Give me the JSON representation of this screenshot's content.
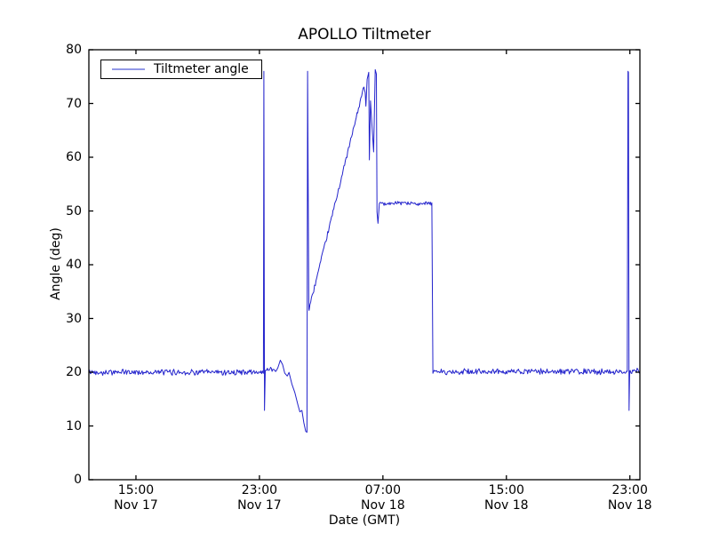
{
  "chart_data": {
    "type": "line",
    "title": "APOLLO Tiltmeter",
    "xlabel": "Date (GMT)",
    "ylabel": "Angle (deg)",
    "legend": [
      {
        "label": "Tiltmeter angle",
        "sample_color": "#9298e6"
      }
    ],
    "line_color": "#2323cc",
    "axis_color": "#000000",
    "background_color": "#ffffff",
    "ylim": [
      0,
      80
    ],
    "yticks": [
      0,
      10,
      20,
      30,
      40,
      50,
      60,
      70,
      80
    ],
    "xlim_hours": [
      11.95,
      47.65
    ],
    "xticks": [
      {
        "t": 15,
        "time": "15:00",
        "date": "Nov 17"
      },
      {
        "t": 23,
        "time": "23:00",
        "date": "Nov 17"
      },
      {
        "t": 31,
        "time": "07:00",
        "date": "Nov 18"
      },
      {
        "t": 39,
        "time": "15:00",
        "date": "Nov 18"
      },
      {
        "t": 47,
        "time": "23:00",
        "date": "Nov 18"
      }
    ],
    "grid": false,
    "legend_position": "upper-left",
    "series_name": "Tiltmeter angle",
    "segments": [
      {
        "type": "flat",
        "t0": 11.95,
        "t1": 23.24,
        "level": 20.0,
        "noise": 0.45
      },
      {
        "type": "points",
        "pts": [
          [
            23.26,
            19.8
          ],
          [
            23.29,
            76.0
          ],
          [
            23.33,
            12.9
          ],
          [
            23.38,
            20.3
          ]
        ]
      },
      {
        "type": "flat",
        "t0": 23.42,
        "t1": 24.1,
        "level": 20.5,
        "noise": 0.4
      },
      {
        "type": "points",
        "noise": 0.25,
        "pts": [
          [
            24.2,
            21.0
          ],
          [
            24.35,
            22.3
          ],
          [
            24.5,
            21.3
          ],
          [
            24.64,
            19.6
          ],
          [
            24.8,
            19.4
          ],
          [
            24.92,
            19.9
          ],
          [
            25.1,
            17.6
          ],
          [
            25.3,
            16.2
          ],
          [
            25.5,
            14.1
          ],
          [
            25.62,
            12.6
          ],
          [
            25.75,
            12.9
          ],
          [
            25.88,
            10.6
          ],
          [
            26.0,
            9.0
          ],
          [
            26.08,
            8.7
          ]
        ]
      },
      {
        "type": "points",
        "pts": [
          [
            26.12,
            76.0
          ],
          [
            26.2,
            31.8
          ]
        ]
      },
      {
        "type": "ramp",
        "t0": 26.22,
        "t1": 29.8,
        "v0": 31.8,
        "v1": 73.5,
        "noise": 0.4
      },
      {
        "type": "points",
        "pts": [
          [
            29.85,
            72.0
          ],
          [
            29.9,
            69.5
          ],
          [
            29.98,
            74.5
          ],
          [
            30.08,
            75.8
          ],
          [
            30.12,
            59.5
          ],
          [
            30.2,
            70.5
          ],
          [
            30.28,
            66.5
          ],
          [
            30.4,
            61.0
          ],
          [
            30.5,
            76.3
          ],
          [
            30.58,
            75.5
          ],
          [
            30.62,
            49.8
          ],
          [
            30.68,
            47.7
          ]
        ]
      },
      {
        "type": "flat",
        "t0": 30.77,
        "t1": 34.2,
        "level": 51.4,
        "noise": 0.3
      },
      {
        "type": "points",
        "pts": [
          [
            34.24,
            19.8
          ]
        ]
      },
      {
        "type": "flat",
        "t0": 34.28,
        "t1": 46.84,
        "level": 20.1,
        "noise": 0.45
      },
      {
        "type": "points",
        "pts": [
          [
            46.88,
            76.0
          ],
          [
            46.91,
            75.8
          ],
          [
            46.95,
            12.9
          ],
          [
            46.99,
            20.2
          ]
        ]
      },
      {
        "type": "flat",
        "t0": 47.02,
        "t1": 47.63,
        "level": 20.2,
        "noise": 0.45
      }
    ]
  }
}
